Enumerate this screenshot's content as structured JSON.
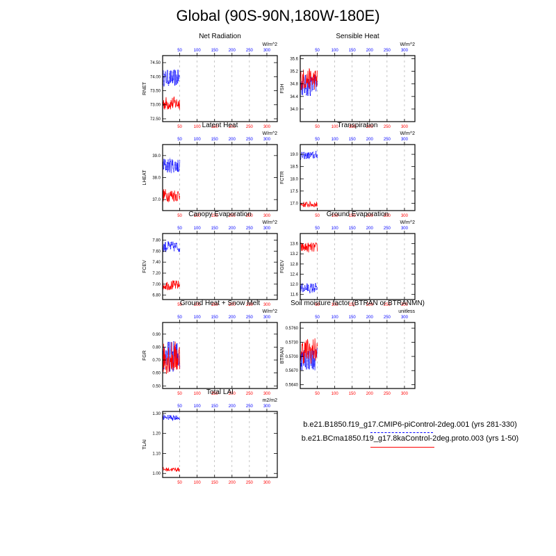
{
  "title": "Global (90S-90N,180W-180E)",
  "colors": {
    "series_a": "#0000ff",
    "series_b": "#ff0000",
    "grid": "#a0a0a0",
    "axis": "#000000"
  },
  "legend": {
    "series_a_label": "b.e21.B1850.f19_g17.CMIP6-piControl-2deg.001 (yrs 281-330)",
    "series_b_label": "b.e21.BCma1850.f19_g17.8kaControl-2deg.proto.003 (yrs 1-50)"
  },
  "chart_data": [
    {
      "type": "line",
      "title": "Net Radiation",
      "ylabel": "RNET",
      "units": "W/m^2",
      "xlim": [
        1,
        330
      ],
      "ylim": [
        72.4,
        74.75
      ],
      "yticks": [
        "72.50",
        "73.00",
        "73.50",
        "74.00",
        "74.50"
      ],
      "top_xticks": [
        "50",
        "100",
        "150",
        "200",
        "250",
        "300"
      ],
      "bottom_xticks": [
        "50",
        "100",
        "150",
        "200",
        "250",
        "300"
      ],
      "series": [
        {
          "name": "series_a",
          "style": "dotted",
          "x_range": [
            1,
            50
          ],
          "base": 73.95,
          "amp": 0.3
        },
        {
          "name": "series_b",
          "style": "solid",
          "x_range": [
            1,
            50
          ],
          "base": 73.05,
          "amp": 0.25
        }
      ]
    },
    {
      "type": "line",
      "title": "Sensible Heat",
      "ylabel": "FSH",
      "units": "W/m^2",
      "xlim": [
        1,
        330
      ],
      "ylim": [
        33.6,
        35.7
      ],
      "yticks": [
        "34.0",
        "34.4",
        "34.8",
        "35.2",
        "35.6"
      ],
      "top_xticks": [
        "50",
        "100",
        "150",
        "200",
        "250",
        "300"
      ],
      "bottom_xticks": [
        "50",
        "100",
        "150",
        "200",
        "250",
        "300"
      ],
      "series": [
        {
          "name": "series_a",
          "style": "dotted",
          "x_range": [
            1,
            50
          ],
          "base": 34.75,
          "amp": 0.35
        },
        {
          "name": "series_b",
          "style": "solid",
          "x_range": [
            1,
            50
          ],
          "base": 34.95,
          "amp": 0.35
        }
      ]
    },
    {
      "type": "line",
      "title": "Latent Heat",
      "ylabel": "LHEAT",
      "units": "W/m^2",
      "xlim": [
        1,
        330
      ],
      "ylim": [
        36.5,
        39.5
      ],
      "yticks": [
        "37.0",
        "38.0",
        "39.0"
      ],
      "top_xticks": [
        "50",
        "100",
        "150",
        "200",
        "250",
        "300"
      ],
      "bottom_xticks": [
        "50",
        "100",
        "150",
        "200",
        "250",
        "300"
      ],
      "series": [
        {
          "name": "series_a",
          "style": "dotted",
          "x_range": [
            1,
            50
          ],
          "base": 38.55,
          "amp": 0.35
        },
        {
          "name": "series_b",
          "style": "solid",
          "x_range": [
            1,
            50
          ],
          "base": 37.2,
          "amp": 0.3
        }
      ]
    },
    {
      "type": "line",
      "title": "Transpiration",
      "ylabel": "FCTR",
      "units": "W/m^2",
      "xlim": [
        1,
        330
      ],
      "ylim": [
        16.7,
        19.4
      ],
      "yticks": [
        "17.0",
        "17.5",
        "18.0",
        "18.5",
        "19.0"
      ],
      "top_xticks": [
        "50",
        "100",
        "150",
        "200",
        "250",
        "300"
      ],
      "bottom_xticks": [
        "50",
        "100",
        "150",
        "200",
        "250",
        "300"
      ],
      "series": [
        {
          "name": "series_a",
          "style": "dotted",
          "x_range": [
            1,
            50
          ],
          "base": 18.95,
          "amp": 0.15
        },
        {
          "name": "series_b",
          "style": "solid",
          "x_range": [
            1,
            50
          ],
          "base": 16.95,
          "amp": 0.12
        }
      ]
    },
    {
      "type": "line",
      "title": "Canopy Evaporation",
      "ylabel": "FCEV",
      "units": "W/m^2",
      "xlim": [
        1,
        330
      ],
      "ylim": [
        6.72,
        7.92
      ],
      "yticks": [
        "6.80",
        "7.00",
        "7.20",
        "7.40",
        "7.60",
        "7.80"
      ],
      "top_xticks": [
        "50",
        "100",
        "150",
        "200",
        "250",
        "300"
      ],
      "bottom_xticks": [
        "50",
        "100",
        "150",
        "200",
        "250",
        "300"
      ],
      "series": [
        {
          "name": "series_a",
          "style": "dotted",
          "x_range": [
            1,
            50
          ],
          "base": 7.68,
          "amp": 0.1
        },
        {
          "name": "series_b",
          "style": "solid",
          "x_range": [
            1,
            50
          ],
          "base": 6.98,
          "amp": 0.09
        }
      ]
    },
    {
      "type": "line",
      "title": "Ground Evaporation",
      "ylabel": "FGEV",
      "units": "W/m^2",
      "xlim": [
        1,
        330
      ],
      "ylim": [
        11.4,
        14.0
      ],
      "yticks": [
        "11.6",
        "12.0",
        "12.4",
        "12.8",
        "13.2",
        "13.6"
      ],
      "top_xticks": [
        "50",
        "100",
        "150",
        "200",
        "250",
        "300"
      ],
      "bottom_xticks": [
        "50",
        "100",
        "150",
        "200",
        "250",
        "300"
      ],
      "series": [
        {
          "name": "series_a",
          "style": "dotted",
          "x_range": [
            1,
            50
          ],
          "base": 11.85,
          "amp": 0.2
        },
        {
          "name": "series_b",
          "style": "solid",
          "x_range": [
            1,
            50
          ],
          "base": 13.45,
          "amp": 0.2
        }
      ]
    },
    {
      "type": "line",
      "title": "Ground Heat + Snow Melt",
      "ylabel": "FGR",
      "units": "W/m^2",
      "xlim": [
        1,
        330
      ],
      "ylim": [
        0.48,
        0.99
      ],
      "yticks": [
        "0.50",
        "0.60",
        "0.70",
        "0.80",
        "0.90"
      ],
      "top_xticks": [
        "50",
        "100",
        "150",
        "200",
        "250",
        "300"
      ],
      "bottom_xticks": [
        "50",
        "100",
        "150",
        "200",
        "250",
        "300"
      ],
      "series": [
        {
          "name": "series_a",
          "style": "dotted",
          "x_range": [
            1,
            50
          ],
          "base": 0.73,
          "amp": 0.12
        },
        {
          "name": "series_b",
          "style": "solid",
          "x_range": [
            1,
            50
          ],
          "base": 0.72,
          "amp": 0.13
        }
      ]
    },
    {
      "type": "line",
      "title": "Soil moisture factor (BTRAN or BTRANMN)",
      "ylabel": "BTRAN",
      "units": "unitless",
      "xlim": [
        1,
        330
      ],
      "ylim": [
        0.5632,
        0.5772
      ],
      "yticks": [
        "0.5640",
        "0.5670",
        "0.5700",
        "0.5730",
        "0.5760"
      ],
      "top_xticks": [
        "50",
        "100",
        "150",
        "200",
        "250",
        "300"
      ],
      "bottom_xticks": [
        "50",
        "100",
        "150",
        "200",
        "250",
        "300"
      ],
      "series": [
        {
          "name": "series_a",
          "style": "dotted",
          "x_range": [
            1,
            50
          ],
          "base": 0.5695,
          "amp": 0.0025
        },
        {
          "name": "series_b",
          "style": "solid",
          "x_range": [
            1,
            50
          ],
          "base": 0.5712,
          "amp": 0.0028
        }
      ]
    },
    {
      "type": "line",
      "title": "Total LAI",
      "ylabel": "TLAI",
      "units": "m2/m2",
      "xlim": [
        1,
        330
      ],
      "ylim": [
        0.98,
        1.31
      ],
      "yticks": [
        "1.00",
        "1.10",
        "1.20",
        "1.30"
      ],
      "top_xticks": [
        "50",
        "100",
        "150",
        "200",
        "250",
        "300"
      ],
      "bottom_xticks": [
        "50",
        "100",
        "150",
        "200",
        "250",
        "300"
      ],
      "series": [
        {
          "name": "series_a",
          "style": "dotted",
          "x_range": [
            1,
            50
          ],
          "base": 1.28,
          "amp": 0.012
        },
        {
          "name": "series_b",
          "style": "solid",
          "x_range": [
            1,
            50
          ],
          "base": 1.02,
          "amp": 0.01
        }
      ]
    }
  ]
}
